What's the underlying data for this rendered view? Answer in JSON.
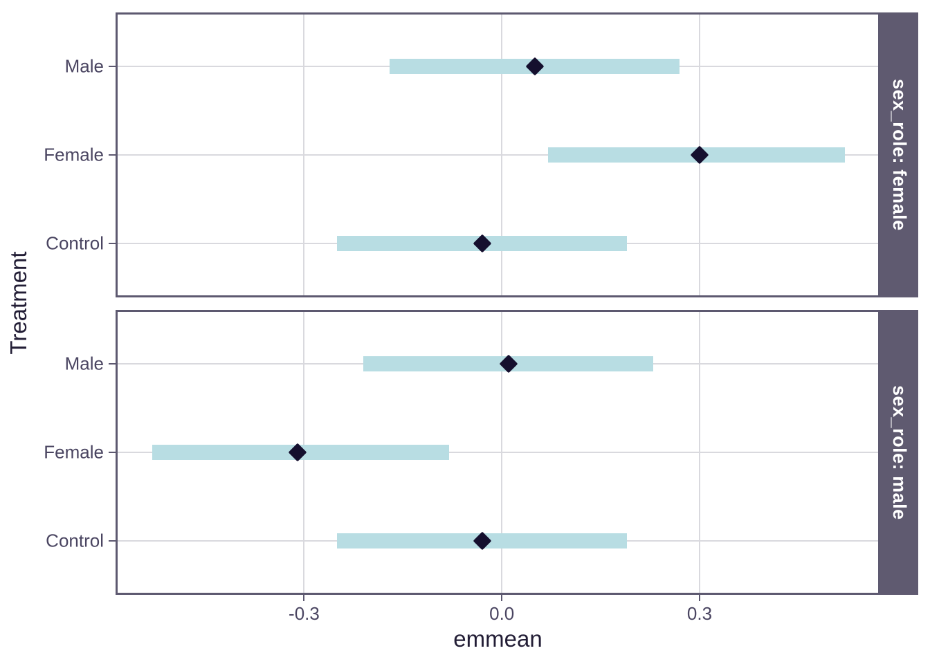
{
  "figure": {
    "x_axis_title": "emmean",
    "y_axis_title": "Treatment"
  },
  "chart_data": {
    "type": "faceted_pointrange",
    "orientation": "horizontal",
    "title": "",
    "xlabel": "emmean",
    "ylabel": "Treatment",
    "x_axis": {
      "ticks": [
        -0.3,
        0.0,
        0.3
      ],
      "tick_labels": [
        "-0.3",
        "0.0",
        "0.3"
      ],
      "range": [
        -0.586,
        0.574
      ]
    },
    "y_axis": {
      "categories_top_to_bottom": [
        "Male",
        "Female",
        "Control"
      ]
    },
    "grid": true,
    "legend_position": "none",
    "facets": [
      {
        "strip_label": "sex_role: female",
        "rows": [
          {
            "category": "Male",
            "emmean": 0.05,
            "ci_lower": -0.17,
            "ci_upper": 0.27
          },
          {
            "category": "Female",
            "emmean": 0.3,
            "ci_lower": 0.07,
            "ci_upper": 0.52
          },
          {
            "category": "Control",
            "emmean": -0.03,
            "ci_lower": -0.25,
            "ci_upper": 0.19
          }
        ]
      },
      {
        "strip_label": "sex_role: male",
        "rows": [
          {
            "category": "Male",
            "emmean": 0.01,
            "ci_lower": -0.21,
            "ci_upper": 0.23
          },
          {
            "category": "Female",
            "emmean": -0.31,
            "ci_lower": -0.53,
            "ci_upper": -0.08
          },
          {
            "category": "Control",
            "emmean": -0.03,
            "ci_lower": -0.25,
            "ci_upper": 0.19
          }
        ]
      }
    ],
    "style_colors": {
      "ci_bar": "#b8dde3",
      "point": "#150f2e",
      "strip_background": "#5f5a70",
      "strip_text": "#ffffff",
      "panel_border": "#5d5970",
      "gridline": "#d9d9de",
      "axis_text": "#4a4561",
      "axis_title": "#221d35"
    }
  }
}
